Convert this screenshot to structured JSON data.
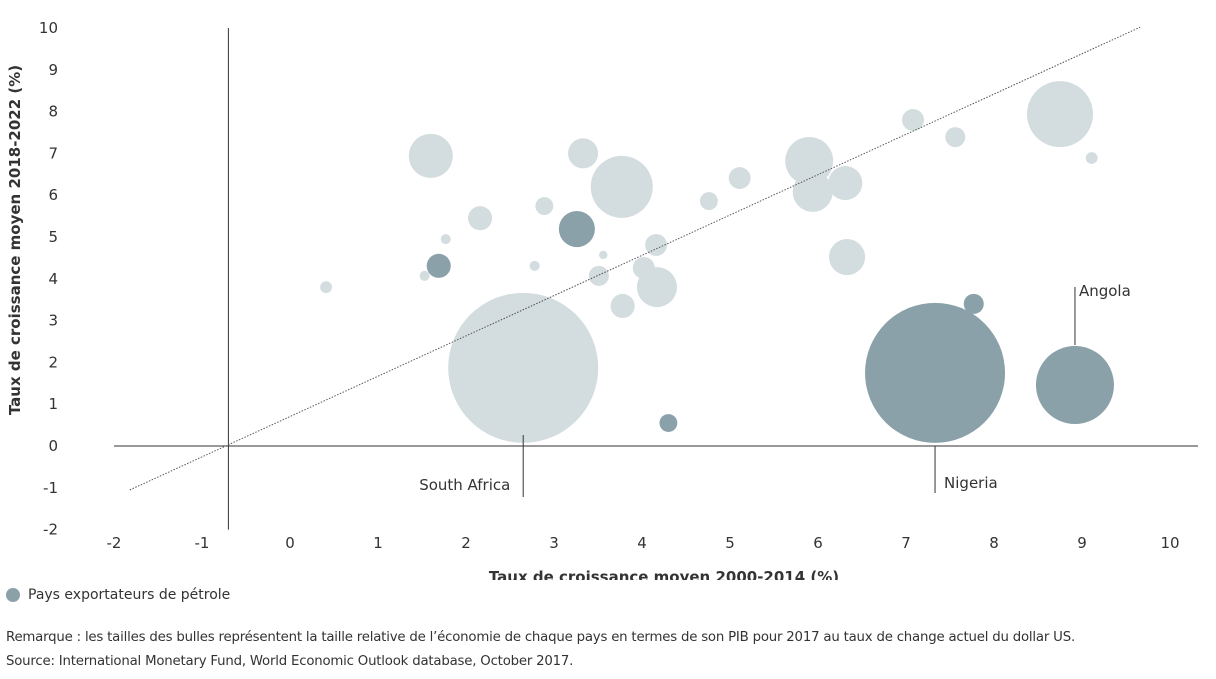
{
  "chart_data": {
    "type": "scatter",
    "subtype": "bubble",
    "xlabel": "Taux de croissance moyen 2000-2014 (%)",
    "ylabel": "Taux de croissance moyen 2018-2022 (%)",
    "xlim": [
      -2,
      10
    ],
    "ylim": [
      -2,
      10
    ],
    "xticks": [
      "-2",
      "-1",
      "0",
      "1",
      "2",
      "3",
      "4",
      "5",
      "6",
      "7",
      "8",
      "9",
      "10"
    ],
    "yticks": [
      "10",
      "9",
      "8",
      "7",
      "6",
      "5",
      "4",
      "3",
      "2",
      "1",
      "0",
      "-1",
      "-2"
    ],
    "grid": false,
    "legend": {
      "placement": "bottom-left",
      "entries": [
        {
          "label": "Pays exportateurs de pétrole",
          "color": "#8aa1a9"
        }
      ]
    },
    "colors": {
      "other": "#d3dcdf",
      "oil_exporter": "#8aa1a9"
    },
    "trend_line": {
      "from": [
        -1.82,
        -1.05
      ],
      "to": [
        9.66,
        10.02
      ]
    },
    "vertical_axis_at_x": -0.7,
    "points": [
      {
        "x": 0.41,
        "y": 3.8,
        "size": 1.4,
        "oil": false
      },
      {
        "x": 1.6,
        "y": 6.94,
        "size": 19.4,
        "oil": false
      },
      {
        "x": 1.53,
        "y": 4.07,
        "size": 1.0,
        "oil": false
      },
      {
        "x": 1.69,
        "y": 4.31,
        "size": 5.8,
        "oil": true
      },
      {
        "x": 1.77,
        "y": 4.95,
        "size": 1.0,
        "oil": false
      },
      {
        "x": 2.16,
        "y": 5.45,
        "size": 5.8,
        "oil": false
      },
      {
        "x": 2.65,
        "y": 1.87,
        "size": 225,
        "oil": false,
        "label": "South Africa"
      },
      {
        "x": 2.78,
        "y": 4.31,
        "size": 1.0,
        "oil": false
      },
      {
        "x": 2.89,
        "y": 5.74,
        "size": 3.2,
        "oil": false
      },
      {
        "x": 3.26,
        "y": 5.19,
        "size": 13.0,
        "oil": true
      },
      {
        "x": 3.33,
        "y": 7.0,
        "size": 9.0,
        "oil": false
      },
      {
        "x": 3.56,
        "y": 4.57,
        "size": 0.7,
        "oil": false
      },
      {
        "x": 3.51,
        "y": 4.07,
        "size": 4.0,
        "oil": false
      },
      {
        "x": 3.77,
        "y": 6.2,
        "size": 38.4,
        "oil": false
      },
      {
        "x": 3.78,
        "y": 3.35,
        "size": 5.8,
        "oil": false
      },
      {
        "x": 4.02,
        "y": 4.26,
        "size": 4.8,
        "oil": false
      },
      {
        "x": 4.16,
        "y": 4.81,
        "size": 4.8,
        "oil": false
      },
      {
        "x": 4.17,
        "y": 3.8,
        "size": 16.0,
        "oil": false
      },
      {
        "x": 4.3,
        "y": 0.55,
        "size": 3.2,
        "oil": true
      },
      {
        "x": 4.76,
        "y": 5.86,
        "size": 3.2,
        "oil": false
      },
      {
        "x": 5.11,
        "y": 6.41,
        "size": 4.8,
        "oil": false
      },
      {
        "x": 5.9,
        "y": 6.82,
        "size": 23.0,
        "oil": false
      },
      {
        "x": 5.94,
        "y": 6.08,
        "size": 16.0,
        "oil": false
      },
      {
        "x": 6.31,
        "y": 6.29,
        "size": 11.6,
        "oil": false
      },
      {
        "x": 6.33,
        "y": 4.52,
        "size": 13.0,
        "oil": false
      },
      {
        "x": 7.08,
        "y": 7.8,
        "size": 4.8,
        "oil": false
      },
      {
        "x": 7.33,
        "y": 1.75,
        "size": 196,
        "oil": true,
        "label": "Nigeria"
      },
      {
        "x": 7.56,
        "y": 7.39,
        "size": 4.0,
        "oil": false
      },
      {
        "x": 7.77,
        "y": 3.4,
        "size": 4.0,
        "oil": true
      },
      {
        "x": 8.75,
        "y": 7.94,
        "size": 43.6,
        "oil": false
      },
      {
        "x": 8.92,
        "y": 1.46,
        "size": 60.8,
        "oil": true,
        "label": "Angola"
      },
      {
        "x": 9.11,
        "y": 6.89,
        "size": 1.4,
        "oil": false
      }
    ]
  },
  "notes": {
    "remark": "Remarque : les tailles des bulles représentent la taille relative de l’économie de chaque pays en termes de son PIB pour 2017 au taux de change actuel du dollar US.",
    "source": "Source: International Monetary Fund, World Economic Outlook database, October 2017."
  }
}
